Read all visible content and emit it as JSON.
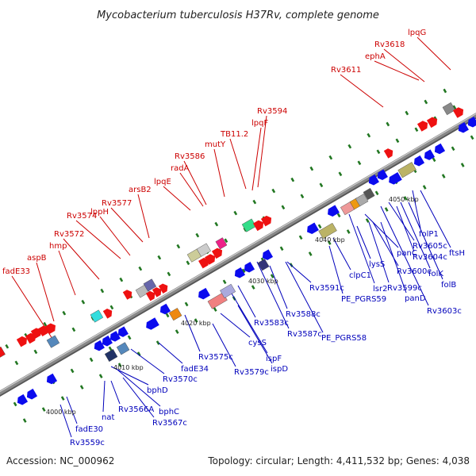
{
  "title": "Mycobacterium tuberculosis H37Rv, complete genome",
  "footer": {
    "accession": "Accession: NC_000962",
    "summary": "Topology: circular; Length: 4,411,532 bp; Genes: 4,038"
  },
  "ticks": [
    "4000 kbp",
    "4010 kbp",
    "4020 kbp",
    "4030 kbp",
    "4040 kbp",
    "4050 kbp"
  ],
  "top_labels": [
    "fadE33",
    "aspB",
    "hmp",
    "Rv3572",
    "Rv3574",
    "lppH",
    "Rv3577",
    "arsB2",
    "lpqE",
    "radA",
    "Rv3586",
    "mutY",
    "TB11.2",
    "lpqF",
    "Rv3594",
    "Rv3611",
    "ephA",
    "Rv3618",
    "lpqG"
  ],
  "bottom_labels": [
    "Rv3559c",
    "fadE30",
    "nat",
    "Rv3566A",
    "Rv3567c",
    "bphC",
    "bphD",
    "Rv3570c",
    "fadE34",
    "Rv3575c",
    "Rv3579c",
    "cysS",
    "ispF",
    "ispD",
    "Rv3583c",
    "Rv3587c",
    "PE_PGRS58",
    "Rv3588c",
    "Rv3591c",
    "PE_PGRS59",
    "clpC1",
    "lsr2",
    "lysS",
    "Rv3599c",
    "Rv3600c",
    "panC",
    "panD",
    "Rv3605c",
    "Rv3604c",
    "folK",
    "folB",
    "folP1",
    "Rv3603c",
    "ftsH"
  ],
  "colors": {
    "label_top": "#cc0000",
    "label_bottom": "#0000bb",
    "forward_gene": "#ee1111",
    "reverse_gene": "#0b0bee",
    "backbone": "#888888",
    "tick": "#227722"
  }
}
